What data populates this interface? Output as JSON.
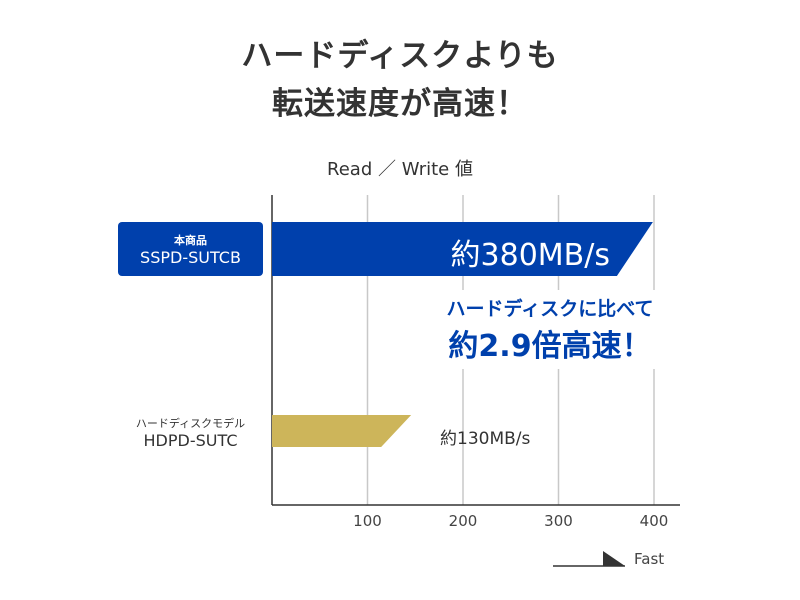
{
  "headline": {
    "line1": "ハードディスクよりも",
    "line2": "転送速度が高速！"
  },
  "chart_data": {
    "type": "bar",
    "orientation": "horizontal",
    "title": "Read ／ Write 値",
    "categories": [
      {
        "tag": "本商品",
        "model": "SSPD-SUTCB"
      },
      {
        "tag": "ハードディスクモデル",
        "model": "HDPD-SUTC"
      }
    ],
    "values": [
      380,
      130
    ],
    "value_labels": [
      "約380MB/s",
      "約130MB/s"
    ],
    "colors": [
      "#0040ac",
      "#cdb55a"
    ],
    "xticks": [
      "100",
      "200",
      "300",
      "400"
    ],
    "xlim": [
      0,
      420
    ],
    "grid": true,
    "axis_hint": "Fast",
    "annotation": {
      "line1": "ハードディスクに比べて",
      "line2": "約2.9倍高速！"
    }
  }
}
